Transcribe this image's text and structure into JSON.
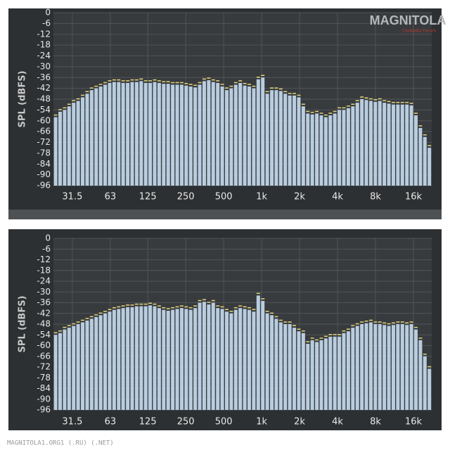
{
  "chart_data": [
    {
      "type": "bar",
      "ylabel": "SPL (dBFS)",
      "logo": "MAGNITOLA",
      "logo_sub": "CarAudio Forum",
      "color": "#b9cde0",
      "peak_color": "#e6d77c",
      "values": [
        -58,
        -55,
        -54,
        -52,
        -50,
        -49,
        -47,
        -45,
        -43,
        -42,
        -41,
        -40,
        -39,
        -38.5,
        -38.5,
        -39,
        -39,
        -38.5,
        -38.5,
        -38,
        -39,
        -39,
        -38.5,
        -39,
        -39.5,
        -39.5,
        -40,
        -40,
        -40,
        -40.5,
        -41,
        -41.5,
        -40,
        -38,
        -37.5,
        -38.5,
        -39,
        -41,
        -43,
        -42,
        -40,
        -39,
        -40.5,
        -41,
        -42,
        -37,
        -36,
        -45,
        -43,
        -43,
        -43.5,
        -45,
        -46,
        -46,
        -47,
        -52,
        -56,
        -56.5,
        -56,
        -57,
        -58,
        -57,
        -56,
        -54,
        -54,
        -53,
        -52,
        -50,
        -48,
        -48.5,
        -49,
        -49.5,
        -49,
        -50,
        -50.5,
        -51,
        -51,
        -51,
        -51,
        -51.5,
        -57,
        -64,
        -69,
        -75
      ],
      "ylim": [
        -96,
        0
      ],
      "yticks": [
        0,
        -6,
        -12,
        -18,
        -24,
        -30,
        -36,
        -42,
        -48,
        -54,
        -60,
        -66,
        -72,
        -78,
        -84,
        -90,
        -96
      ],
      "xscale": "log",
      "xlim": [
        22.3,
        22350
      ],
      "xticks": [
        31.5,
        63,
        125,
        250,
        500,
        {
          "value": 1000,
          "label": "1k"
        },
        {
          "value": 2000,
          "label": "2k"
        },
        {
          "value": 4000,
          "label": "4k"
        },
        {
          "value": 8000,
          "label": "8k"
        },
        {
          "value": 16000,
          "label": "16k"
        }
      ],
      "grid": true
    },
    {
      "type": "bar",
      "ylabel": "SPL (dBFS)",
      "color": "#b9cde0",
      "peak_color": "#e6d77c",
      "values": [
        -54,
        -53,
        -51,
        -50,
        -49,
        -48,
        -47,
        -46,
        -45,
        -44,
        -43,
        -42,
        -41,
        -40,
        -39.5,
        -39,
        -38.5,
        -38.5,
        -38,
        -38,
        -38,
        -37.5,
        -38,
        -39,
        -40,
        -40.5,
        -40,
        -39.5,
        -39,
        -39.5,
        -40,
        -39,
        -36,
        -35.5,
        -37,
        -36,
        -39,
        -39.5,
        -41,
        -42,
        -40,
        -39,
        -39.5,
        -40,
        -41,
        -32,
        -35,
        -42,
        -43,
        -45,
        -47,
        -48,
        -48,
        -50,
        -52,
        -53,
        -59,
        -57,
        -58,
        -57,
        -56,
        -55,
        -55,
        -55,
        -53,
        -52,
        -50,
        -49,
        -48,
        -47.5,
        -47,
        -48,
        -48,
        -48.5,
        -49,
        -48.5,
        -48,
        -48,
        -48.5,
        -48,
        -51,
        -57,
        -66,
        -73
      ],
      "ylim": [
        -96,
        0
      ],
      "yticks": [
        0,
        -6,
        -12,
        -18,
        -24,
        -30,
        -36,
        -42,
        -48,
        -54,
        -60,
        -66,
        -72,
        -78,
        -84,
        -90,
        -96
      ],
      "xscale": "log",
      "xlim": [
        22.3,
        22350
      ],
      "xticks": [
        31.5,
        63,
        125,
        250,
        500,
        {
          "value": 1000,
          "label": "1k"
        },
        {
          "value": 2000,
          "label": "2k"
        },
        {
          "value": 4000,
          "label": "4k"
        },
        {
          "value": 8000,
          "label": "8k"
        },
        {
          "value": 16000,
          "label": "16k"
        }
      ],
      "grid": true
    }
  ],
  "watermark": "MAGNITOLA1.ORG1 (.RU) (.NET)"
}
